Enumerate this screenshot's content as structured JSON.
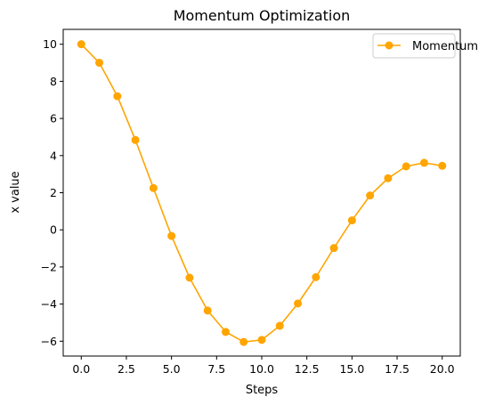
{
  "chart_data": {
    "type": "line",
    "title": "Momentum Optimization",
    "xlabel": "Steps",
    "ylabel": "x value",
    "xlim": [
      -1,
      21
    ],
    "ylim": [
      -6.8,
      10.8
    ],
    "x_ticks": [
      0,
      2.5,
      5,
      7.5,
      10,
      12.5,
      15,
      17.5,
      20
    ],
    "x_tick_labels": [
      "0.0",
      "2.5",
      "5.0",
      "7.5",
      "10.0",
      "12.5",
      "15.0",
      "17.5",
      "20.0"
    ],
    "y_ticks": [
      -6,
      -4,
      -2,
      0,
      2,
      4,
      6,
      8,
      10
    ],
    "y_tick_labels": [
      "−6",
      "−4",
      "−2",
      "0",
      "2",
      "4",
      "6",
      "8",
      "10"
    ],
    "grid": false,
    "legend_position": "top-right",
    "series": [
      {
        "name": "Momentum",
        "color": "#ffa500",
        "marker": "circle",
        "x": [
          0,
          1,
          2,
          3,
          4,
          5,
          6,
          7,
          8,
          9,
          10,
          11,
          12,
          13,
          14,
          15,
          16,
          17,
          18,
          19,
          20
        ],
        "y": [
          10.0,
          9.0,
          7.2,
          4.84,
          2.25,
          -0.33,
          -2.58,
          -4.35,
          -5.5,
          -6.04,
          -5.93,
          -5.17,
          -3.97,
          -2.55,
          -0.98,
          0.51,
          1.85,
          2.78,
          3.42,
          3.61,
          3.45
        ]
      }
    ]
  }
}
